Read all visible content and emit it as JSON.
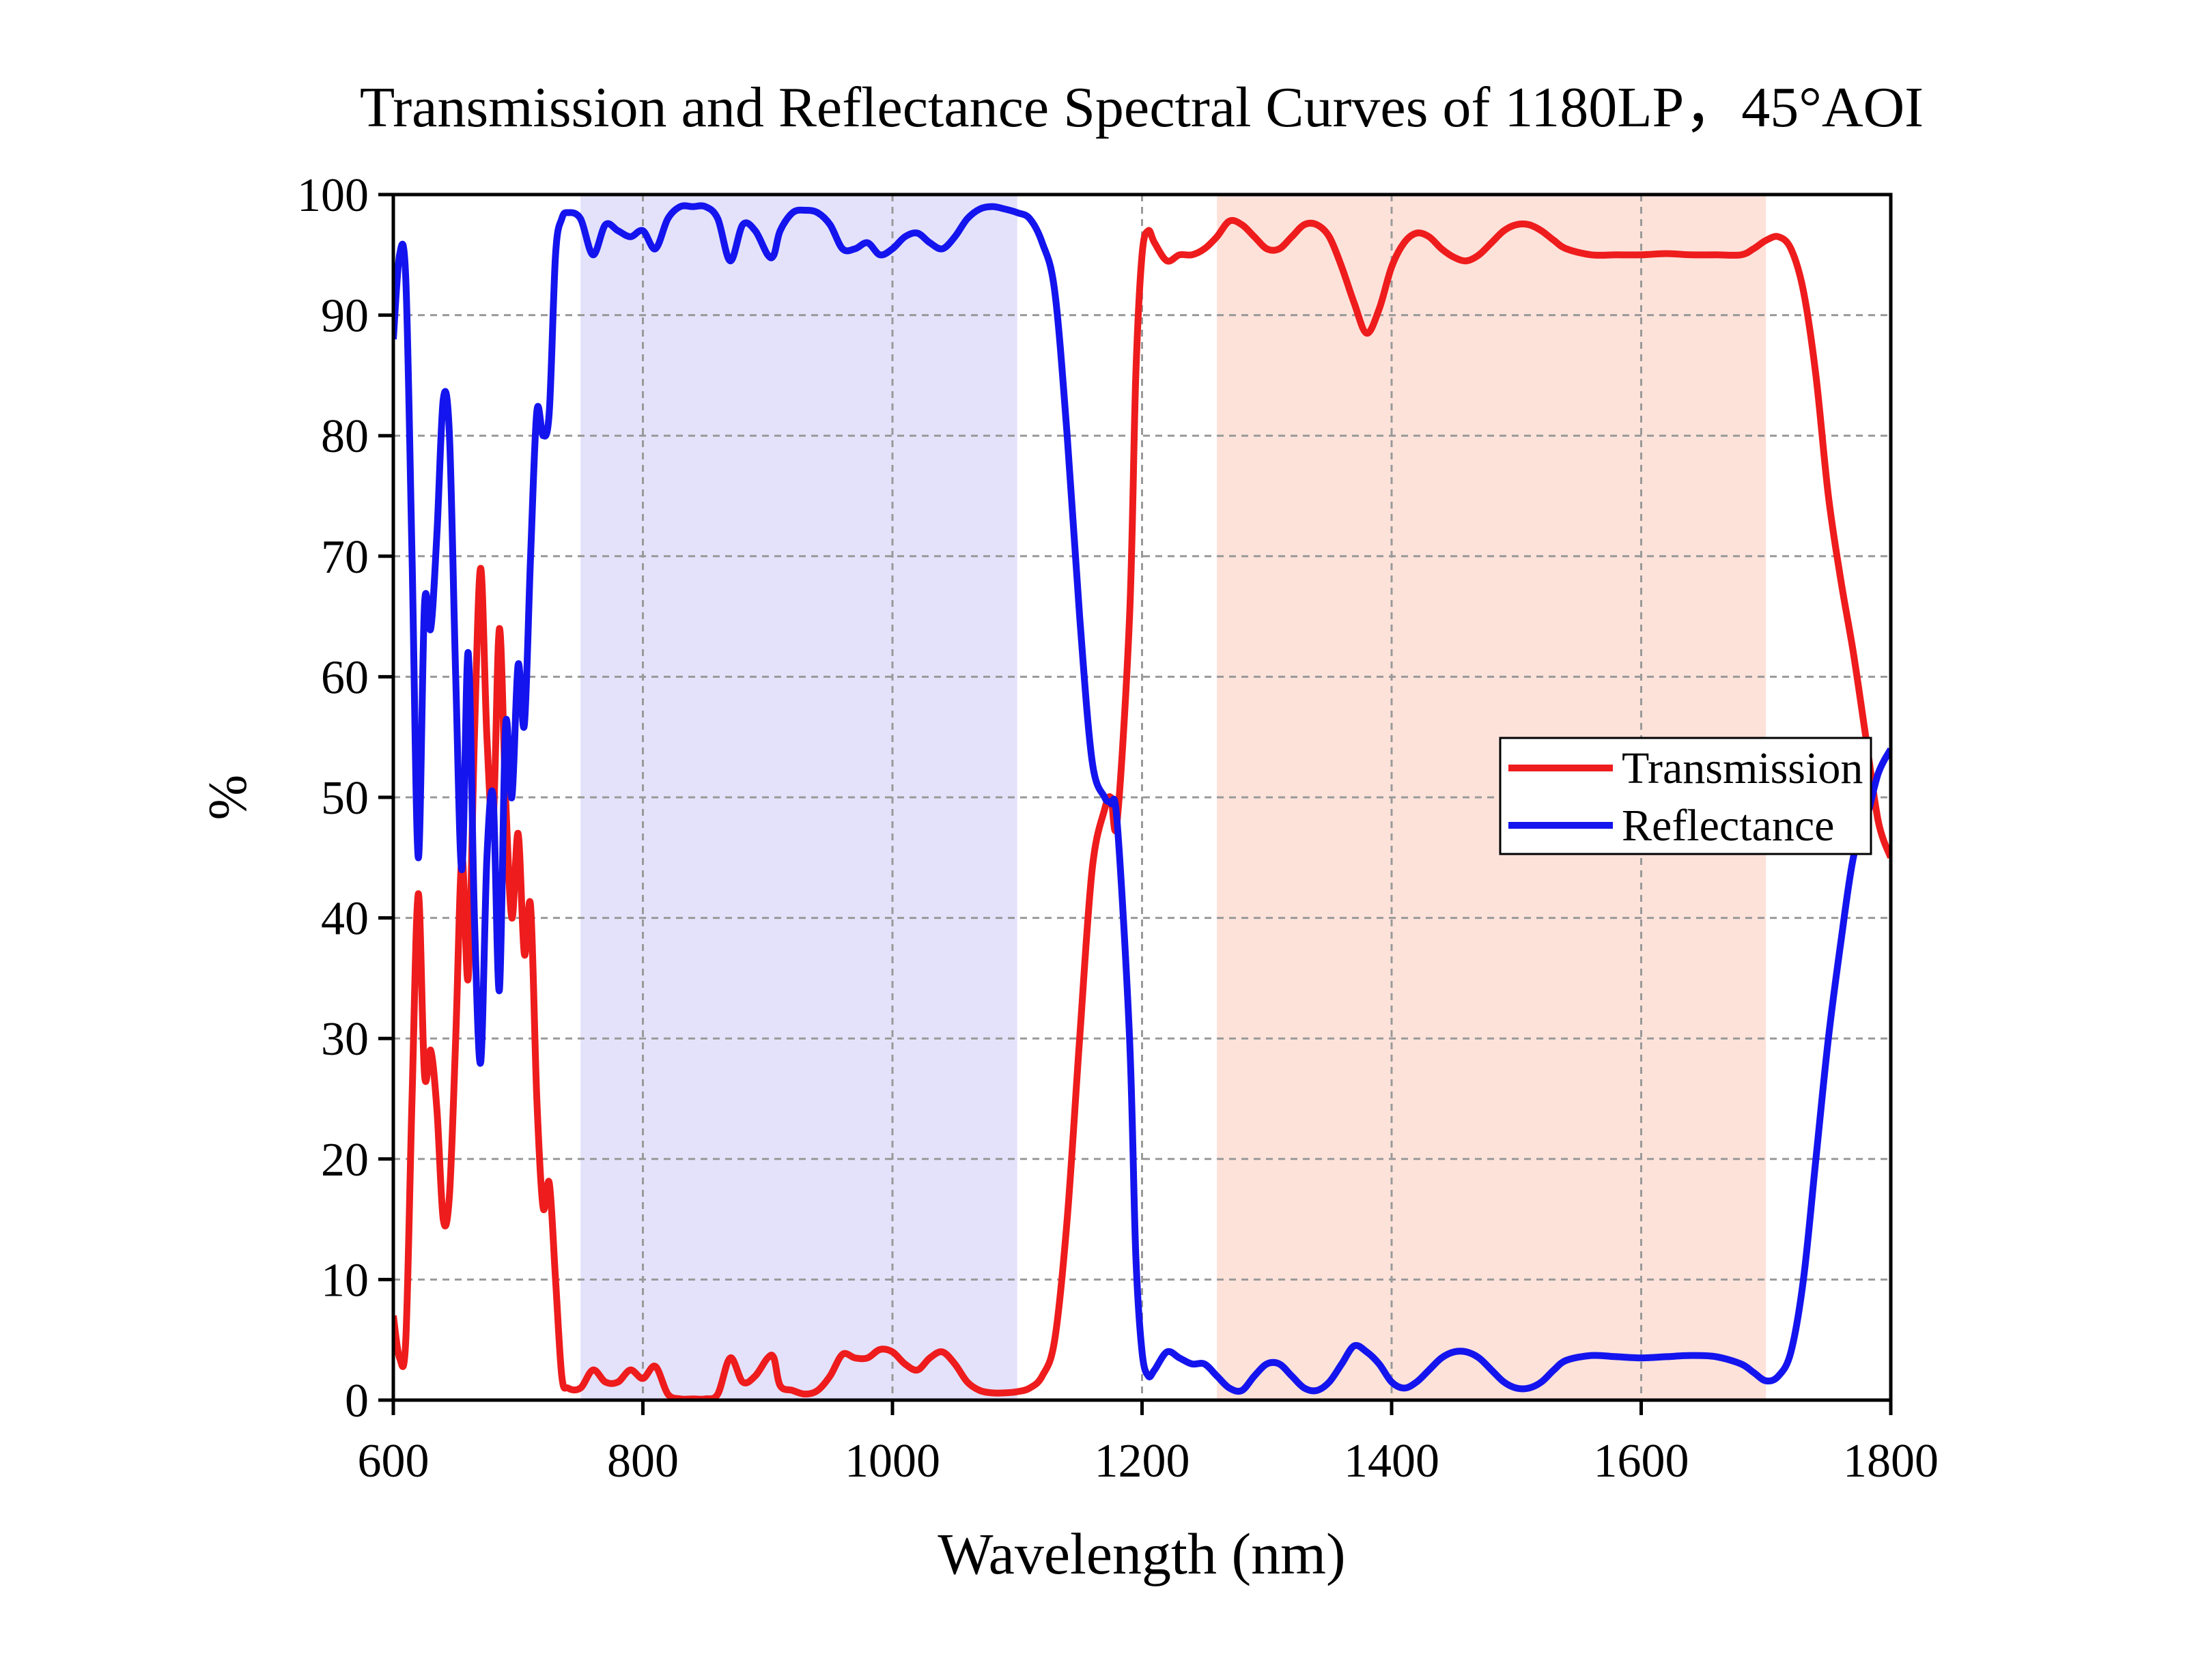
{
  "chart_data": {
    "type": "line",
    "title": "Transmission and Reflectance Spectral Curves of 1180LP，45°AOI",
    "xlabel": "Wavelength (nm)",
    "ylabel": "%",
    "xlim": [
      600,
      1800
    ],
    "xticks": [
      600,
      800,
      1000,
      1200,
      1400,
      1600,
      1800
    ],
    "ylim": [
      0,
      100
    ],
    "yticks": [
      0,
      10,
      20,
      30,
      40,
      50,
      60,
      70,
      80,
      90,
      100
    ],
    "grid": true,
    "legend": "right",
    "shaded_regions": [
      {
        "xlim": [
          750,
          1100
        ],
        "color": "#e4e2fb"
      },
      {
        "xlim": [
          1260,
          1700
        ],
        "color": "#fde2da"
      }
    ],
    "x": [
      600,
      605,
      610,
      615,
      620,
      625,
      630,
      635,
      640,
      645,
      650,
      655,
      660,
      665,
      670,
      675,
      680,
      685,
      690,
      695,
      700,
      705,
      710,
      715,
      720,
      725,
      730,
      735,
      740,
      750,
      760,
      770,
      780,
      790,
      800,
      810,
      820,
      830,
      840,
      850,
      860,
      870,
      880,
      890,
      900,
      905,
      910,
      920,
      930,
      940,
      950,
      960,
      970,
      980,
      990,
      1000,
      1010,
      1020,
      1030,
      1040,
      1050,
      1060,
      1070,
      1080,
      1090,
      1100,
      1110,
      1120,
      1130,
      1140,
      1150,
      1160,
      1170,
      1175,
      1180,
      1190,
      1195,
      1200,
      1205,
      1210,
      1220,
      1230,
      1240,
      1250,
      1260,
      1270,
      1280,
      1290,
      1300,
      1310,
      1320,
      1330,
      1340,
      1350,
      1360,
      1370,
      1380,
      1390,
      1400,
      1410,
      1420,
      1430,
      1440,
      1450,
      1460,
      1470,
      1480,
      1490,
      1500,
      1510,
      1520,
      1530,
      1540,
      1560,
      1580,
      1600,
      1620,
      1640,
      1660,
      1680,
      1690,
      1700,
      1710,
      1720,
      1730,
      1740,
      1750,
      1760,
      1770,
      1780,
      1790,
      1800
    ],
    "series": [
      {
        "name": "Transmission",
        "color": "#ee1c1c",
        "values": [
          7,
          3.5,
          5,
          25,
          42,
          27,
          29,
          24,
          15,
          17,
          30,
          45,
          35,
          55,
          69,
          55,
          48,
          64,
          50,
          40,
          47,
          37,
          41,
          25,
          16,
          18,
          10,
          2,
          1,
          1,
          2.5,
          1.5,
          1.5,
          2.5,
          1.8,
          2.8,
          0.5,
          0.1,
          0.1,
          0.1,
          0.5,
          3.5,
          1.5,
          2,
          3.5,
          3.5,
          1.2,
          0.8,
          0.5,
          0.8,
          2,
          3.8,
          3.5,
          3.5,
          4.2,
          4,
          3,
          2.5,
          3.5,
          4,
          3,
          1.5,
          0.8,
          0.6,
          0.6,
          0.7,
          1,
          2,
          5,
          15,
          30,
          44,
          49,
          50,
          48,
          65,
          85,
          95,
          97,
          96,
          94.5,
          95,
          95,
          95.5,
          96.5,
          97.8,
          97.5,
          96.5,
          95.5,
          95.5,
          96.5,
          97.5,
          97.5,
          96.5,
          94,
          91,
          88.5,
          90.5,
          94,
          96,
          96.8,
          96.5,
          95.5,
          94.8,
          94.5,
          95,
          96,
          97,
          97.5,
          97.5,
          97,
          96.2,
          95.5,
          95,
          95,
          95,
          95.1,
          95,
          95,
          95,
          95.5,
          96.2,
          96.5,
          95.5,
          92,
          85,
          75,
          68,
          62,
          55,
          48,
          45
        ]
      },
      {
        "name": "Reflectance",
        "color": "#1414ee",
        "values": [
          88,
          95,
          93,
          70,
          45,
          66,
          64,
          72,
          83,
          80,
          60,
          44,
          62,
          40,
          28,
          45,
          50,
          34,
          56,
          50,
          61,
          56,
          70,
          82,
          80,
          82,
          95,
          98,
          98.5,
          98,
          95,
          97.5,
          97,
          96.5,
          97,
          95.5,
          98,
          99,
          99,
          99,
          98,
          94.5,
          97.5,
          97,
          95,
          95,
          97,
          98.5,
          98.7,
          98.5,
          97.5,
          95.5,
          95.5,
          96,
          95,
          95.5,
          96.5,
          96.8,
          96,
          95.5,
          96.5,
          98,
          98.8,
          99,
          98.8,
          98.5,
          98,
          96,
          92,
          80,
          65,
          53,
          50,
          49.5,
          48,
          30,
          12,
          4,
          2,
          2.5,
          4,
          3.5,
          3,
          3,
          2,
          1,
          0.8,
          2,
          3,
          3,
          2,
          1,
          0.8,
          1.5,
          3,
          4.5,
          4,
          3,
          1.5,
          1,
          1.5,
          2.5,
          3.5,
          4,
          4,
          3.5,
          2.5,
          1.5,
          1,
          1,
          1.5,
          2.5,
          3.3,
          3.7,
          3.6,
          3.5,
          3.6,
          3.7,
          3.6,
          3,
          2.3,
          1.6,
          2,
          4,
          10,
          20,
          30,
          38,
          45,
          48,
          52,
          54
        ]
      }
    ]
  }
}
